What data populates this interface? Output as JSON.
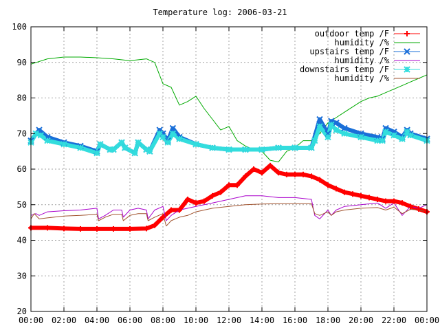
{
  "chart_data": {
    "type": "line",
    "title": "Temperature log: 2006-03-21",
    "xlabel": "",
    "ylabel": "",
    "xlim": [
      0,
      24
    ],
    "ylim": [
      20,
      100
    ],
    "x_ticks": [
      {
        "value": 0,
        "label": "00:00"
      },
      {
        "value": 2,
        "label": "02:00"
      },
      {
        "value": 4,
        "label": "04:00"
      },
      {
        "value": 6,
        "label": "06:00"
      },
      {
        "value": 8,
        "label": "08:00"
      },
      {
        "value": 10,
        "label": "10:00"
      },
      {
        "value": 12,
        "label": "12:00"
      },
      {
        "value": 14,
        "label": "14:00"
      },
      {
        "value": 16,
        "label": "16:00"
      },
      {
        "value": 18,
        "label": "18:00"
      },
      {
        "value": 20,
        "label": "20:00"
      },
      {
        "value": 22,
        "label": "22:00"
      },
      {
        "value": 24,
        "label": "00:00"
      }
    ],
    "y_ticks": [
      20,
      30,
      40,
      50,
      60,
      70,
      80,
      90,
      100
    ],
    "grid": true,
    "legend_position": "top-right",
    "series": [
      {
        "name": "outdoor temp /F",
        "color": "#ff0000",
        "marker": "plus",
        "x": [
          0,
          1,
          2,
          3,
          4,
          5,
          6,
          7,
          7.5,
          8,
          8.5,
          9,
          9.5,
          10,
          10.5,
          11,
          11.5,
          12,
          12.5,
          13,
          13.5,
          14,
          14.5,
          15,
          15.5,
          16,
          16.5,
          17,
          17.5,
          18,
          18.5,
          19,
          19.5,
          20,
          20.5,
          21,
          21.5,
          22,
          22.5,
          23,
          23.5,
          24
        ],
        "y": [
          43.5,
          43.5,
          43.3,
          43.2,
          43.2,
          43.2,
          43.2,
          43.3,
          44.2,
          46.5,
          48.5,
          48.5,
          51.5,
          50.5,
          51,
          52.5,
          53.5,
          55.5,
          55.5,
          58,
          60,
          59,
          61,
          59,
          58.5,
          58.5,
          58.5,
          58,
          57,
          55.5,
          54.5,
          53.5,
          53,
          52.5,
          52,
          51.5,
          51,
          51,
          50.5,
          49.5,
          48.8,
          48
        ]
      },
      {
        "name": "humidity /%",
        "color": "#00aa00",
        "marker": "none",
        "x": [
          0,
          1,
          2,
          3,
          4,
          5,
          6,
          7,
          7.5,
          8,
          8.5,
          9,
          9.5,
          10,
          10.5,
          11,
          11.5,
          12,
          12.5,
          13,
          13.5,
          14,
          14.5,
          15,
          15.5,
          16,
          16.5,
          17,
          17.5,
          18,
          18.5,
          19,
          19.5,
          20,
          20.5,
          21,
          21.5,
          22,
          22.5,
          23,
          23.5,
          24
        ],
        "y": [
          89.5,
          91,
          91.5,
          91.5,
          91.3,
          91,
          90.5,
          91,
          90,
          84,
          83,
          78,
          79,
          80.5,
          77,
          74,
          71,
          72,
          68,
          66.5,
          65.5,
          65,
          62.5,
          62,
          65,
          66,
          68,
          68,
          70,
          73,
          74.5,
          76,
          77.5,
          79,
          80,
          80.5,
          81.5,
          82.5,
          83.5,
          84.5,
          85.5,
          86.5
        ]
      },
      {
        "name": "upstairs temp /F",
        "color": "#1a6fd8",
        "marker": "cross",
        "x": [
          0,
          0.5,
          1,
          2,
          3,
          4,
          4.2,
          4.8,
          5,
          5.5,
          5.7,
          6.3,
          6.5,
          7,
          7.2,
          7.8,
          8,
          8.3,
          8.6,
          9,
          10,
          11,
          12,
          13,
          14,
          15,
          16,
          17,
          17.5,
          18,
          18.2,
          18.5,
          19,
          20,
          21,
          21.3,
          21.5,
          22,
          22.5,
          22.8,
          23,
          24
        ],
        "y": [
          68,
          71,
          69,
          67.5,
          66.5,
          65,
          67,
          65.5,
          65.5,
          67.5,
          66,
          64.5,
          67.5,
          65.5,
          65,
          71,
          70,
          68,
          71.5,
          69,
          67,
          66,
          65.5,
          65.5,
          65.5,
          66,
          66,
          66,
          74,
          70,
          73.5,
          73,
          71.5,
          70,
          69,
          68.5,
          71.5,
          70.5,
          69,
          71,
          70,
          68.5
        ]
      },
      {
        "name": "humidity /%",
        "color": "#aa00cc",
        "marker": "none",
        "x": [
          0,
          0.3,
          0.5,
          1,
          2,
          3,
          4,
          4.1,
          4.5,
          5,
          5.5,
          5.6,
          6,
          6.5,
          7,
          7.1,
          7.5,
          8,
          8.2,
          8.5,
          9,
          9.5,
          10,
          11,
          12,
          13,
          14,
          15,
          16,
          17,
          17.2,
          17.5,
          18,
          18.2,
          18.5,
          19,
          20,
          21,
          21.5,
          22,
          22.5,
          23,
          23.5,
          24
        ],
        "y": [
          47,
          47.5,
          47,
          48,
          48.3,
          48.5,
          49,
          46,
          47,
          48.5,
          48.5,
          46.5,
          48.5,
          49,
          48.5,
          46,
          48.5,
          49.5,
          45.5,
          47,
          48.5,
          49,
          49.5,
          50.5,
          51.5,
          52.5,
          52.5,
          52,
          52,
          51.5,
          47,
          46,
          48.5,
          47,
          48.5,
          49.5,
          50,
          50.5,
          49,
          50.5,
          47,
          49.5,
          49,
          50
        ]
      },
      {
        "name": "downstairs temp /F",
        "color": "#33dddd",
        "marker": "star",
        "x": [
          0,
          0.3,
          0.6,
          1,
          2,
          3,
          4,
          4.2,
          4.8,
          5,
          5.5,
          5.7,
          6.3,
          6.5,
          7,
          7.2,
          7.8,
          8,
          8.3,
          8.6,
          9,
          10,
          11,
          12,
          13,
          14,
          15,
          16,
          17,
          17.2,
          17.5,
          18,
          18.2,
          18.5,
          19,
          20,
          21,
          21.3,
          21.5,
          22,
          22.5,
          22.8,
          23,
          24
        ],
        "y": [
          67.5,
          70,
          69.5,
          68,
          67,
          66,
          64.5,
          67,
          65.5,
          65.5,
          67.5,
          66,
          64.5,
          67.5,
          65.5,
          65,
          70,
          69,
          67.5,
          70,
          68.5,
          67,
          66,
          65.5,
          65.5,
          65.5,
          66,
          66,
          66,
          68,
          72,
          69,
          72.5,
          71,
          70,
          69,
          68,
          68,
          70.5,
          69.5,
          68.5,
          70.5,
          69.5,
          68
        ]
      },
      {
        "name": "humidity /%",
        "color": "#a0522d",
        "marker": "none",
        "x": [
          0,
          0.2,
          0.5,
          1,
          2,
          3,
          4,
          4.1,
          4.5,
          5,
          5.5,
          5.6,
          6,
          6.5,
          7,
          7.1,
          7.5,
          8,
          8.2,
          8.5,
          9,
          9.5,
          10,
          11,
          12,
          13,
          14,
          15,
          16,
          17,
          17.2,
          17.5,
          18,
          18.2,
          18.5,
          19,
          20,
          21,
          21.5,
          22,
          22.5,
          23,
          23.5,
          24
        ],
        "y": [
          46,
          47.5,
          46,
          46.3,
          46.8,
          47,
          47.3,
          45.5,
          46.5,
          47.3,
          47.3,
          45.5,
          47,
          47.5,
          47.5,
          45.5,
          46.5,
          47.5,
          44,
          45.5,
          46.5,
          47,
          48,
          49,
          49.5,
          50,
          50.2,
          50.3,
          50.3,
          50.3,
          47.5,
          47,
          48,
          47,
          48,
          48.5,
          49,
          49.2,
          48.5,
          49.3,
          47.5,
          48.7,
          48.5,
          48
        ]
      }
    ]
  }
}
